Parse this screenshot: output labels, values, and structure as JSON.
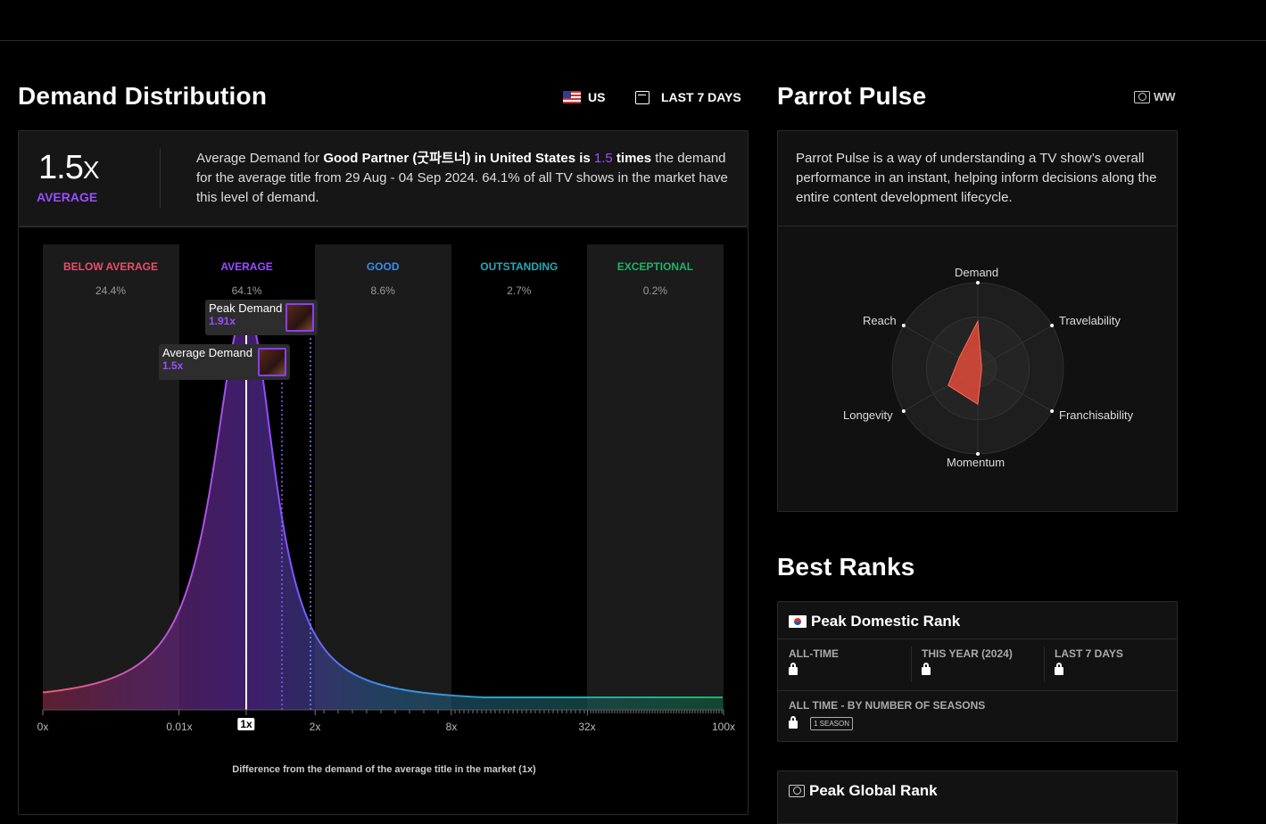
{
  "demand_distribution": {
    "title": "Demand Distribution",
    "country": "US",
    "period": "LAST 7 DAYS",
    "summary": {
      "multiplier": "1.5",
      "multiplier_suffix": "X",
      "level": "AVERAGE",
      "text_1": "Average Demand for ",
      "title_bold": "Good Partner (굿파트너) in United States is ",
      "value": "1.5",
      "times": " times",
      "text_2": " the demand for the average title from 29 Aug - 04 Sep 2024. 64.1% of all TV shows in the market have this level of demand."
    },
    "tooltips": {
      "peak_label": "Peak Demand",
      "peak_value": "1.91x",
      "avg_label": "Average Demand",
      "avg_value": "1.5x"
    },
    "x_caption": "Difference from the demand of the average title in the market (1x)",
    "marker_label": "1x"
  },
  "chart_data": {
    "type": "area",
    "bands": [
      {
        "name": "BELOW AVERAGE",
        "share": "24.4%",
        "color": "#e8506c"
      },
      {
        "name": "AVERAGE",
        "share": "64.1%",
        "color": "#9b4dff"
      },
      {
        "name": "GOOD",
        "share": "8.6%",
        "color": "#3a8fe8"
      },
      {
        "name": "OUTSTANDING",
        "share": "2.7%",
        "color": "#2aa7b5"
      },
      {
        "name": "EXCEPTIONAL",
        "share": "0.2%",
        "color": "#1fb36a"
      }
    ],
    "x_ticks": [
      "0x",
      "0.01x",
      "1x",
      "2x",
      "8x",
      "32x",
      "100x"
    ],
    "average_demand": 1.5,
    "peak_demand": 1.91
  },
  "parrot_pulse": {
    "title": "Parrot Pulse",
    "region": "WW",
    "description": "Parrot Pulse is a way of understanding a TV show’s overall performance in an instant, helping inform decisions along the entire content development lifecycle.",
    "axes": [
      "Demand",
      "Travelability",
      "Franchisability",
      "Momentum",
      "Longevity",
      "Reach"
    ],
    "values": [
      0.55,
      0.05,
      0.05,
      0.42,
      0.4,
      0.25
    ],
    "fill_color": "#e04a3a"
  },
  "best_ranks": {
    "title": "Best Ranks",
    "domestic": {
      "title": "Peak Domestic Rank",
      "col1": "ALL-TIME",
      "col2": "THIS YEAR (2024)",
      "col3": "LAST 7 DAYS",
      "seasons_label": "ALL TIME - BY NUMBER OF SEASONS",
      "season_badge": "1 SEASON"
    },
    "global": {
      "title": "Peak Global Rank"
    }
  }
}
